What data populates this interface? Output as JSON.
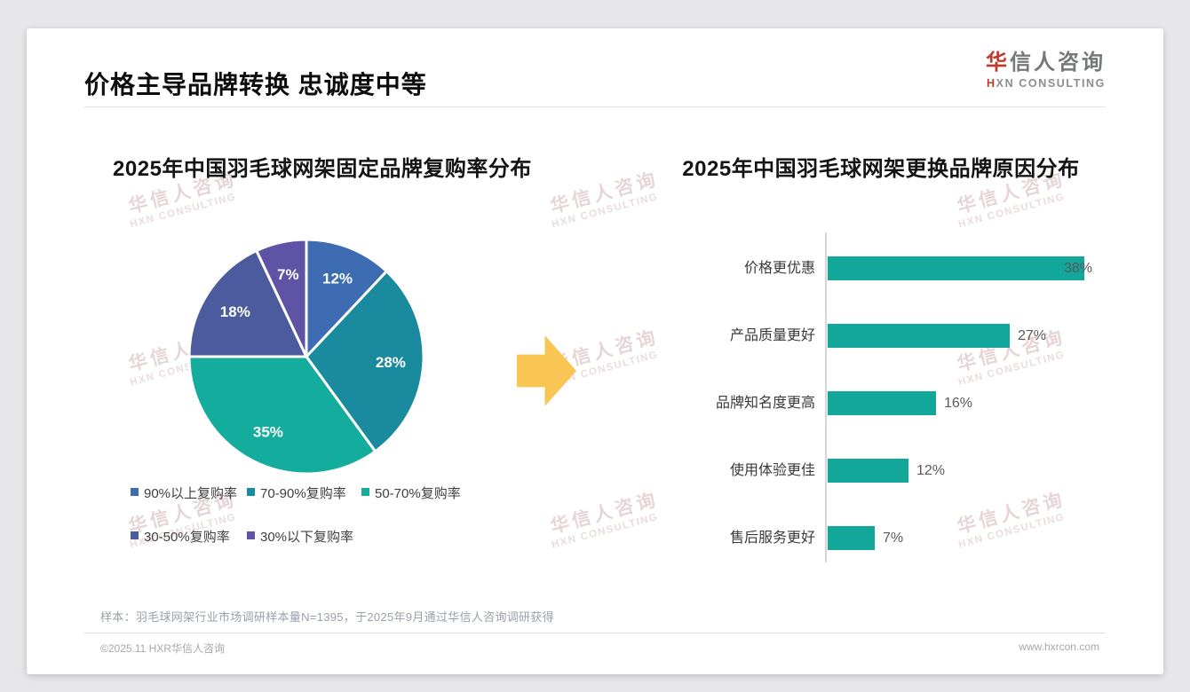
{
  "header": {
    "title": "价格主导品牌转换 忠诚度中等"
  },
  "logo": {
    "cn": "华信人咨询",
    "en": "HXN CONSULTING",
    "accent_color": "#c0392b"
  },
  "watermark": {
    "line1": "华信人咨询",
    "line2": "HXN CONSULTING"
  },
  "arrow": {
    "color": "#f9c553",
    "direction": "right"
  },
  "chart_data": [
    {
      "type": "pie",
      "title": "2025年中国羽毛球网架固定品牌复购率分布",
      "labels": [
        "90%以上复购率",
        "70-90%复购率",
        "50-70%复购率",
        "30-50%复购率",
        "30%以下复购率"
      ],
      "values": [
        12,
        28,
        35,
        18,
        7
      ],
      "unit": "%",
      "colors": [
        "#3e6cb2",
        "#1a8a9e",
        "#14ac9d",
        "#4c5a9e",
        "#5e53a4"
      ],
      "start_angle": "top",
      "direction": "clockwise",
      "legend_position": "bottom",
      "data_label_color": "#ffffff"
    },
    {
      "type": "bar",
      "orientation": "horizontal",
      "title": "2025年中国羽毛球网架更换品牌原因分布",
      "categories": [
        "价格更优惠",
        "产品质量更好",
        "品牌知名度更高",
        "使用体验更佳",
        "售后服务更好"
      ],
      "values": [
        38,
        27,
        16,
        12,
        7
      ],
      "unit": "%",
      "bar_color": "#12a79a",
      "xlim": [
        0,
        40
      ],
      "grid": false,
      "value_labels": true
    }
  ],
  "footnote": "样本：羽毛球网架行业市场调研样本量N=1395，于2025年9月通过华信人咨询调研获得",
  "footer": {
    "left": "©2025.11 HXR华信人咨询",
    "right": "www.hxrcon.com"
  }
}
